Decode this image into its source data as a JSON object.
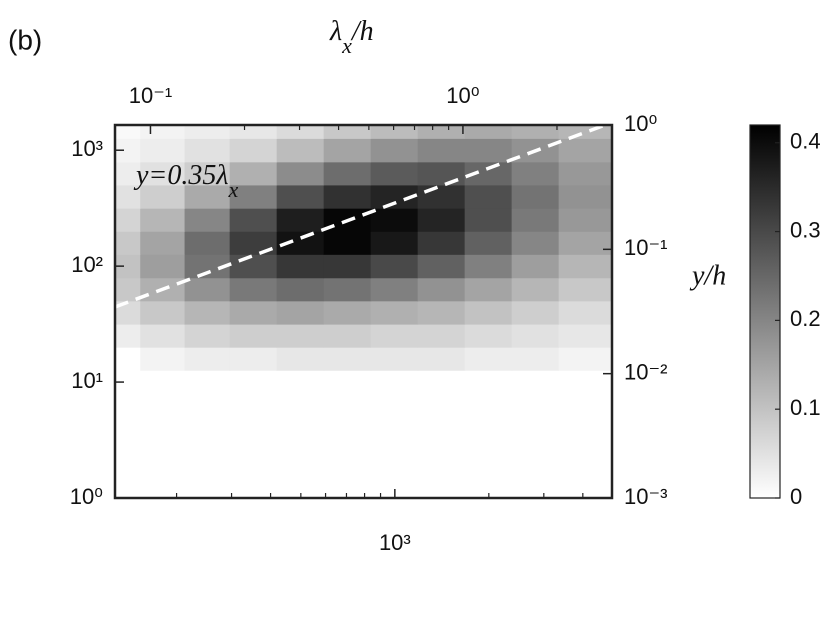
{
  "chart_data": {
    "type": "contour",
    "panel_label": "(b)",
    "x2label": {
      "symbol": "λ",
      "subscript": "x",
      "rest": "/h"
    },
    "y2label": "y/h",
    "xscale": "log",
    "yscale": "log",
    "xlim": [
      127,
      4960
    ],
    "xticks": [
      {
        "value": 1000,
        "label": "10³"
      }
    ],
    "xminor": [
      200,
      300,
      400,
      500,
      600,
      700,
      800,
      900,
      2000,
      3000,
      4000
    ],
    "x2lim": [
      0.077,
      3.0
    ],
    "x2ticks": [
      {
        "value": 0.1,
        "label": "10⁻¹"
      },
      {
        "value": 1,
        "label": "10⁰"
      }
    ],
    "x2minor": [
      0.2,
      0.3,
      0.4,
      0.5,
      0.6,
      0.7,
      0.8,
      0.9,
      2,
      3
    ],
    "ylim": [
      1,
      1650
    ],
    "yticks": [
      {
        "value": 1,
        "label": "10⁰"
      },
      {
        "value": 10,
        "label": "10¹"
      },
      {
        "value": 100,
        "label": "10²"
      },
      {
        "value": 1000,
        "label": "10³"
      }
    ],
    "y2lim": [
      0.001,
      1
    ],
    "y2ticks": [
      {
        "value": 0.001,
        "label": "10⁻³"
      },
      {
        "value": 0.01,
        "label": "10⁻²"
      },
      {
        "value": 0.1,
        "label": "10⁻¹"
      },
      {
        "value": 1,
        "label": "10⁰"
      }
    ],
    "clim": [
      0,
      0.42
    ],
    "cticks": [
      0,
      0.1,
      0.2,
      0.3,
      0.4
    ],
    "ridge": {
      "text": "y=0.35λ",
      "subscript": "x",
      "coefficient": 0.35,
      "color": "#ffffff"
    },
    "x": [
      130,
      180,
      250,
      350,
      500,
      700,
      1000,
      1400,
      2000,
      2800,
      4000
    ],
    "y": [
      1,
      1.6,
      2.5,
      4,
      6.3,
      10,
      16,
      25,
      40,
      63,
      100,
      160,
      250,
      400,
      630,
      1000,
      1600
    ],
    "z": [
      [
        0,
        0,
        0,
        0,
        0,
        0,
        0,
        0,
        0,
        0,
        0
      ],
      [
        0,
        0,
        0,
        0,
        0,
        0,
        0,
        0,
        0,
        0,
        0
      ],
      [
        0,
        0,
        0,
        0,
        0,
        0,
        0,
        0,
        0,
        0,
        0
      ],
      [
        0,
        0,
        0,
        0,
        0,
        0,
        0,
        0,
        0,
        0,
        0
      ],
      [
        0,
        0,
        0,
        0,
        0,
        0,
        0,
        0,
        0,
        0,
        0
      ],
      [
        0,
        0,
        0,
        0,
        0,
        0,
        0,
        0,
        0,
        0,
        0
      ],
      [
        0,
        0.02,
        0.03,
        0.03,
        0.04,
        0.04,
        0.04,
        0.04,
        0.03,
        0.03,
        0.02
      ],
      [
        0.03,
        0.05,
        0.07,
        0.08,
        0.08,
        0.08,
        0.07,
        0.07,
        0.06,
        0.05,
        0.04
      ],
      [
        0.06,
        0.09,
        0.12,
        0.14,
        0.15,
        0.14,
        0.13,
        0.12,
        0.1,
        0.08,
        0.06
      ],
      [
        0.09,
        0.13,
        0.18,
        0.22,
        0.24,
        0.23,
        0.21,
        0.18,
        0.15,
        0.12,
        0.09
      ],
      [
        0.1,
        0.16,
        0.23,
        0.29,
        0.33,
        0.33,
        0.3,
        0.26,
        0.21,
        0.16,
        0.12
      ],
      [
        0.09,
        0.15,
        0.24,
        0.32,
        0.39,
        0.41,
        0.38,
        0.33,
        0.26,
        0.2,
        0.15
      ],
      [
        0.07,
        0.12,
        0.2,
        0.29,
        0.37,
        0.41,
        0.4,
        0.36,
        0.29,
        0.22,
        0.17
      ],
      [
        0.05,
        0.08,
        0.14,
        0.21,
        0.29,
        0.34,
        0.36,
        0.34,
        0.29,
        0.23,
        0.18
      ],
      [
        0.03,
        0.05,
        0.08,
        0.13,
        0.19,
        0.24,
        0.27,
        0.28,
        0.25,
        0.21,
        0.17
      ],
      [
        0.02,
        0.03,
        0.05,
        0.07,
        0.11,
        0.15,
        0.18,
        0.2,
        0.2,
        0.18,
        0.15
      ],
      [
        0.01,
        0.02,
        0.03,
        0.04,
        0.06,
        0.09,
        0.11,
        0.13,
        0.14,
        0.13,
        0.12
      ]
    ]
  }
}
